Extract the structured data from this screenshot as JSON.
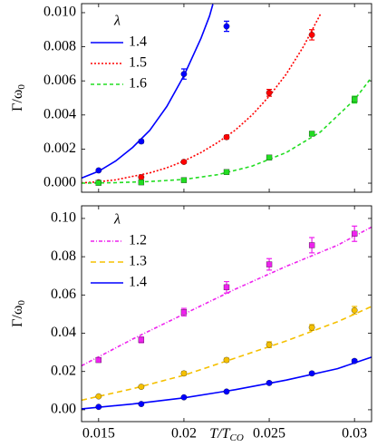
{
  "chart_data": [
    {
      "type": "line",
      "ylabel": {
        "main": "Γ/ω",
        "sub": "0"
      },
      "legend_title": "λ",
      "xlim": [
        0.014,
        0.031
      ],
      "xticks": [
        0.015,
        0.02,
        0.025,
        0.03
      ],
      "xtick_labels": false,
      "ylim": [
        -0.00053,
        0.01053
      ],
      "yticks": [
        {
          "value": 0,
          "label": "0.000"
        },
        {
          "value": 0.002,
          "label": "0.002"
        },
        {
          "value": 0.004,
          "label": "0.004"
        },
        {
          "value": 0.006,
          "label": "0.006"
        },
        {
          "value": 0.008,
          "label": "0.008"
        },
        {
          "value": 0.01,
          "label": "0.010"
        }
      ],
      "series": [
        {
          "name": "1.4",
          "color": "#0000ff",
          "dash": "none",
          "marker": "circle",
          "x": [
            0.015,
            0.0175,
            0.02,
            0.0225
          ],
          "values": [
            0.00075,
            0.00245,
            0.0064,
            0.0092
          ],
          "errors": [
            5e-05,
            0.0001,
            0.0003,
            0.0003
          ],
          "fit_x": [
            0.014,
            0.015,
            0.016,
            0.017,
            0.018,
            0.019,
            0.02,
            0.021,
            0.0215,
            0.0217
          ],
          "fit_values": [
            0.0003,
            0.0007,
            0.0013,
            0.0021,
            0.0031,
            0.0045,
            0.0063,
            0.0085,
            0.0098,
            0.0105
          ]
        },
        {
          "name": "1.5",
          "color": "#ff0000",
          "dash": "2,2",
          "marker": "circle",
          "x": [
            0.015,
            0.0175,
            0.02,
            0.0225,
            0.025,
            0.0275
          ],
          "values": [
            5e-05,
            0.00035,
            0.00125,
            0.0027,
            0.0053,
            0.0087
          ],
          "errors": [
            3e-05,
            5e-05,
            8e-05,
            0.0001,
            0.0002,
            0.0003
          ],
          "fit_x": [
            0.014,
            0.015,
            0.016,
            0.017,
            0.018,
            0.019,
            0.02,
            0.021,
            0.022,
            0.023,
            0.024,
            0.025,
            0.026,
            0.027,
            0.028
          ],
          "fit_values": [
            2e-05,
            8e-05,
            0.0002,
            0.0004,
            0.0006,
            0.0009,
            0.0013,
            0.0018,
            0.0024,
            0.0031,
            0.004,
            0.0051,
            0.0064,
            0.008,
            0.0099
          ]
        },
        {
          "name": "1.6",
          "color": "#22dd22",
          "dash": "4,3",
          "marker": "square",
          "x": [
            0.015,
            0.0175,
            0.02,
            0.0225,
            0.025,
            0.0275,
            0.03
          ],
          "values": [
            2e-05,
            5e-05,
            0.00018,
            0.00065,
            0.0015,
            0.0029,
            0.0049
          ],
          "errors": [
            2e-05,
            2e-05,
            3e-05,
            5e-05,
            0.0001,
            0.0001,
            0.0002
          ],
          "fit_x": [
            0.014,
            0.016,
            0.018,
            0.02,
            0.022,
            0.024,
            0.026,
            0.028,
            0.03,
            0.031
          ],
          "fit_values": [
            0,
            3e-05,
            0.0001,
            0.00022,
            0.0005,
            0.001,
            0.0018,
            0.003,
            0.0049,
            0.0062
          ]
        }
      ]
    },
    {
      "type": "line",
      "ylabel": {
        "main": "Γ/ω",
        "sub": "0"
      },
      "xlabel": {
        "main": "T/T",
        "sub": "CO"
      },
      "legend_title": "λ",
      "xlim": [
        0.014,
        0.031
      ],
      "xticks": [
        0.015,
        0.02,
        0.025,
        0.03
      ],
      "xtick_labels": true,
      "ylim": [
        -0.0062,
        0.1066
      ],
      "yticks": [
        {
          "value": 0,
          "label": "0.00"
        },
        {
          "value": 0.02,
          "label": "0.02"
        },
        {
          "value": 0.04,
          "label": "0.04"
        },
        {
          "value": 0.06,
          "label": "0.06"
        },
        {
          "value": 0.08,
          "label": "0.08"
        },
        {
          "value": 0.1,
          "label": "0.10"
        }
      ],
      "series": [
        {
          "name": "1.2",
          "color": "#ee22ee",
          "dash": "4,2,1,2",
          "marker": "square",
          "x": [
            0.015,
            0.0175,
            0.02,
            0.0225,
            0.025,
            0.0275,
            0.03
          ],
          "values": [
            0.026,
            0.0365,
            0.051,
            0.064,
            0.076,
            0.086,
            0.092
          ],
          "errors": [
            0.001,
            0.0015,
            0.002,
            0.003,
            0.003,
            0.004,
            0.004
          ],
          "fit_x": [
            0.014,
            0.017,
            0.02,
            0.023,
            0.026,
            0.029,
            0.031
          ],
          "fit_values": [
            0.023,
            0.037,
            0.05,
            0.063,
            0.075,
            0.086,
            0.0955
          ]
        },
        {
          "name": "1.3",
          "color": "#f5c000",
          "dash": "6,4",
          "marker": "circle",
          "x": [
            0.015,
            0.0175,
            0.02,
            0.0225,
            0.025,
            0.0275,
            0.03
          ],
          "values": [
            0.007,
            0.012,
            0.019,
            0.026,
            0.034,
            0.043,
            0.052
          ],
          "errors": [
            0.0005,
            0.0007,
            0.001,
            0.001,
            0.0015,
            0.0015,
            0.002
          ],
          "fit_x": [
            0.014,
            0.017,
            0.02,
            0.023,
            0.026,
            0.029,
            0.031
          ],
          "fit_values": [
            0.005,
            0.011,
            0.018,
            0.027,
            0.036,
            0.046,
            0.054
          ]
        },
        {
          "name": "1.4",
          "color": "#0000ff",
          "dash": "none",
          "marker": "circle",
          "x": [
            0.015,
            0.0175,
            0.02,
            0.0225,
            0.025,
            0.0275,
            0.03
          ],
          "values": [
            0.0015,
            0.003,
            0.0065,
            0.0095,
            0.014,
            0.019,
            0.0255
          ],
          "errors": [
            0.0003,
            0.0003,
            0.0004,
            0.0005,
            0.0006,
            0.0007,
            0.0008
          ],
          "fit_x": [
            0.014,
            0.017,
            0.02,
            0.023,
            0.026,
            0.029,
            0.031
          ],
          "fit_values": [
            0.0005,
            0.003,
            0.0062,
            0.0105,
            0.0155,
            0.0215,
            0.0275
          ]
        }
      ]
    }
  ]
}
